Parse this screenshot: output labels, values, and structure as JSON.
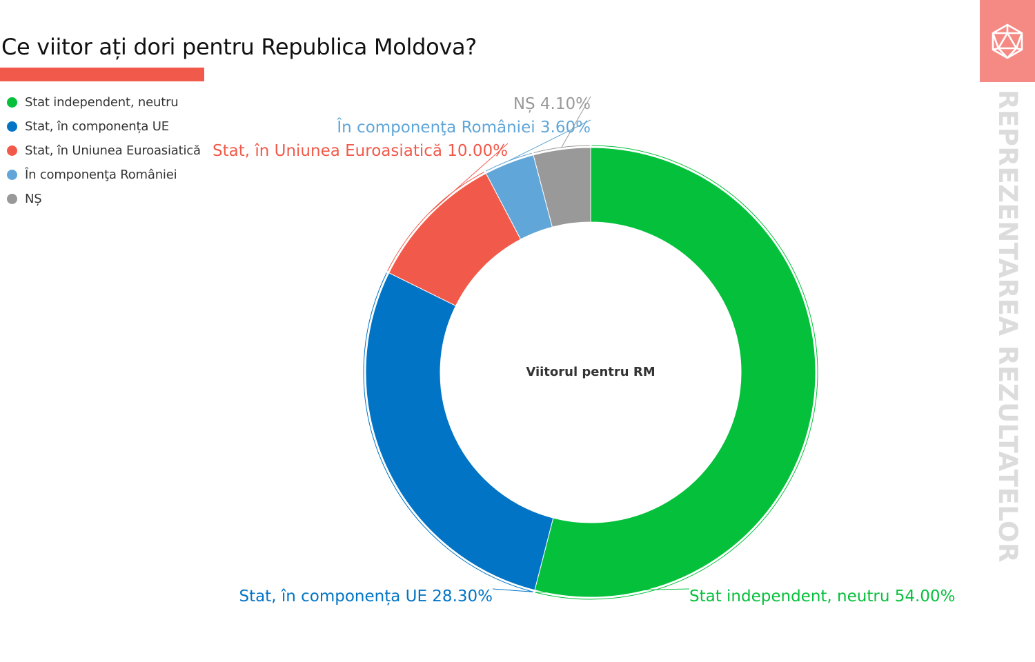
{
  "title": "Ce viitor ați dori pentru Republica Moldova?",
  "accent_color": "#f15a4a",
  "brand": {
    "vertical_text": "REPREZENTAREA REZULTATELOR",
    "icon": "icosahedron-icon",
    "box_color": "#f58a84"
  },
  "chart_data": {
    "type": "pie",
    "hole": true,
    "center_label": "Viitorul pentru RM",
    "legend_position": "top-left",
    "slices": [
      {
        "label": "Stat independent, neutru",
        "value": 54.0,
        "value_label": "54.00%",
        "color": "#05c03b"
      },
      {
        "label": "Stat, în componența UE",
        "value": 28.3,
        "value_label": "28.30%",
        "color": "#0174c5"
      },
      {
        "label": "Stat, în Uniunea Euroasiatică",
        "value": 10.0,
        "value_label": "10.00%",
        "color": "#f15a4a"
      },
      {
        "label": "În componenţa României",
        "value": 3.6,
        "value_label": "3.60%",
        "color": "#60a6d8"
      },
      {
        "label": "NȘ",
        "value": 4.1,
        "value_label": "4.10%",
        "color": "#999999"
      }
    ]
  }
}
